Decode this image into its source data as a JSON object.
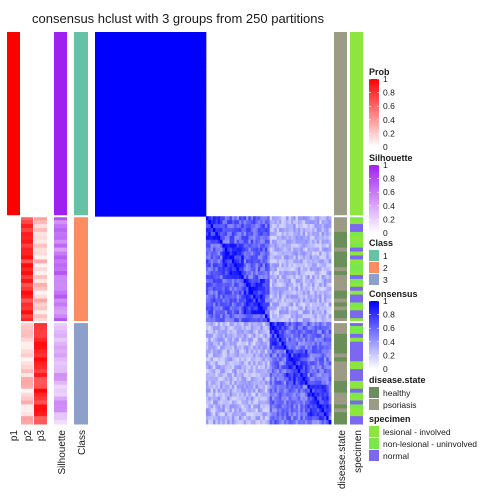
{
  "chart_data": {
    "type": "heatmap",
    "title": "consensus hclust with 3 groups from 250 partitions",
    "n_samples": 100,
    "group_sizes": [
      47,
      27,
      26
    ],
    "row_annotation_labels": [
      "p1",
      "p2",
      "p3",
      "Silhouette",
      "Class"
    ],
    "column_annotation_labels": [
      "disease.state",
      "specimen"
    ],
    "legends": [
      {
        "title": "Prob",
        "type": "continuous",
        "ticks": [
          "1",
          "0.8",
          "0.6",
          "0.4",
          "0.2",
          "0"
        ],
        "low_color": "#ffffff",
        "high_color": "#ff0000"
      },
      {
        "title": "Silhouette",
        "type": "continuous",
        "ticks": [
          "1",
          "0.8",
          "0.6",
          "0.4",
          "0.2",
          "0"
        ],
        "low_color": "#ffffff",
        "high_color": "#a020f0"
      },
      {
        "title": "Class",
        "type": "discrete",
        "entries": [
          {
            "label": "1",
            "color": "#66c2a5"
          },
          {
            "label": "2",
            "color": "#fc8d62"
          },
          {
            "label": "3",
            "color": "#8da0cb"
          }
        ]
      },
      {
        "title": "Consensus",
        "type": "continuous",
        "ticks": [
          "1",
          "0.8",
          "0.6",
          "0.4",
          "0.2",
          "0"
        ],
        "low_color": "#ffffff",
        "high_color": "#0000ff"
      },
      {
        "title": "disease.state",
        "type": "discrete",
        "entries": [
          {
            "label": "healthy",
            "color": "#6a8f5a"
          },
          {
            "label": "psoriasis",
            "color": "#9c9b85"
          }
        ]
      },
      {
        "title": "specimen",
        "type": "discrete",
        "entries": [
          {
            "label": "lesional - involved",
            "color": "#8ce63e"
          },
          {
            "label": "non-lesional - uninvolved",
            "color": "#7ae84a"
          },
          {
            "label": "normal",
            "color": "#7b68ee"
          }
        ]
      }
    ],
    "group_membership_prob_mean": {
      "group1": [
        1.0,
        0.0,
        0.0
      ],
      "group2": [
        0.0,
        0.8,
        0.2
      ],
      "group3": [
        0.0,
        0.2,
        0.8
      ]
    },
    "silhouette_mean": {
      "group1": 1.0,
      "group2": 0.6,
      "group3": 0.35
    },
    "consensus_within_group_mean": {
      "group1": 1.0,
      "group2": 0.6,
      "group3": 0.55
    },
    "consensus_between_groups_mean": {
      "g1_g2": 0.0,
      "g1_g3": 0.0,
      "g2_g3": 0.3
    },
    "disease_state_by_group": {
      "group1": "psoriasis",
      "group2": "mixed",
      "group3": "mixed"
    },
    "specimen_by_group": {
      "group1": "lesional - involved",
      "group2": "mixed",
      "group3": "mixed"
    }
  }
}
